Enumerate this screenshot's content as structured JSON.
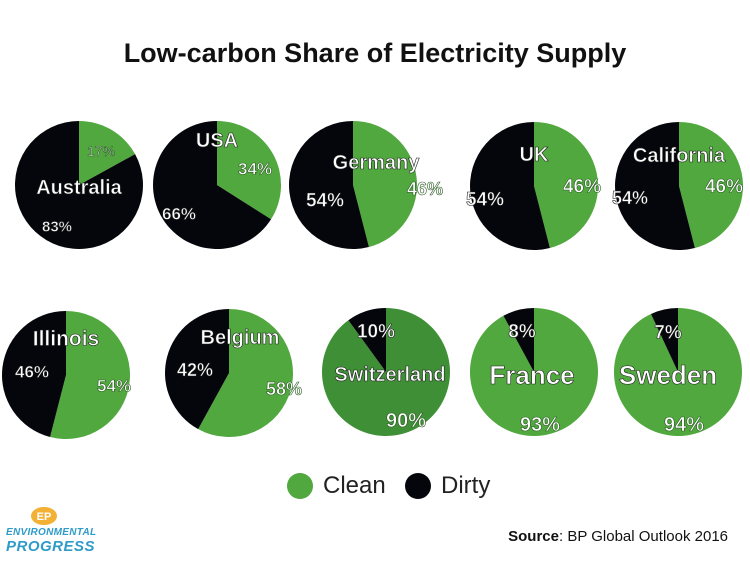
{
  "colors": {
    "clean": "#50a83e",
    "clean_dark": "#3f8f36",
    "dirty": "#05060b",
    "accent": "#2f9bc9"
  },
  "chart_data": {
    "type": "pie",
    "title": "Low-carbon Share of Electricity Supply",
    "series": [
      "Clean",
      "Dirty"
    ],
    "pies": [
      {
        "name": "Australia",
        "clean": 17,
        "dirty": 83,
        "clean_label": "17%",
        "dirty_label": "83%"
      },
      {
        "name": "USA",
        "clean": 34,
        "dirty": 66,
        "clean_label": "34%",
        "dirty_label": "66%"
      },
      {
        "name": "Germany",
        "clean": 46,
        "dirty": 54,
        "clean_label": "46%",
        "dirty_label": "54%"
      },
      {
        "name": "UK",
        "clean": 46,
        "dirty": 54,
        "clean_label": "46%",
        "dirty_label": "54%"
      },
      {
        "name": "California",
        "clean": 46,
        "dirty": 54,
        "clean_label": "46%",
        "dirty_label": "54%"
      },
      {
        "name": "Illinois",
        "clean": 54,
        "dirty": 46,
        "clean_label": "54%",
        "dirty_label": "46%"
      },
      {
        "name": "Belgium",
        "clean": 58,
        "dirty": 42,
        "clean_label": "58%",
        "dirty_label": "42%"
      },
      {
        "name": "Switzerland",
        "clean": 90,
        "dirty": 10,
        "clean_label": "90%",
        "dirty_label": "10%"
      },
      {
        "name": "France",
        "clean": 93,
        "dirty": 8,
        "clean_label": "93%",
        "dirty_label": "8%"
      },
      {
        "name": "Sweden",
        "clean": 94,
        "dirty": 7,
        "clean_label": "94%",
        "dirty_label": "7%"
      }
    ]
  },
  "legend": {
    "clean_label": "Clean",
    "dirty_label": "Dirty"
  },
  "logo": {
    "line1": "ENVIRONMENTAL",
    "line2": "PROGRESS",
    "mark": "EP"
  },
  "source": {
    "label": "Source",
    "text": ": BP Global Outlook 2016"
  }
}
